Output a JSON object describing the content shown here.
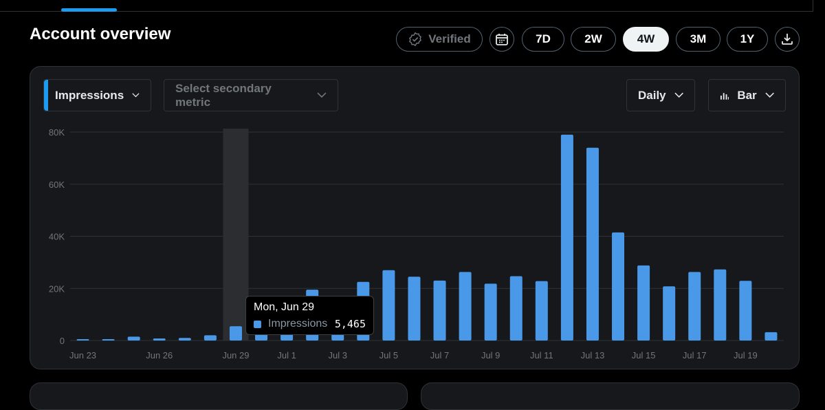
{
  "header": {
    "title": "Account overview",
    "verified_label": "Verified",
    "ranges": [
      "7D",
      "2W",
      "4W",
      "3M",
      "1Y"
    ],
    "active_range": "4W"
  },
  "controls": {
    "primary_metric": "Impressions",
    "secondary_metric_placeholder": "Select secondary metric",
    "granularity": "Daily",
    "chart_type": "Bar"
  },
  "tooltip": {
    "date": "Mon, Jun 29",
    "metric": "Impressions",
    "value": "5,465"
  },
  "colors": {
    "bar": "#4a99e9",
    "accent": "#1d9bf0",
    "highlight": "#2b2d30"
  },
  "chart_data": {
    "type": "bar",
    "xlabel": "",
    "ylabel": "",
    "ylim": [
      0,
      80000
    ],
    "yticks": [
      0,
      20000,
      40000,
      60000,
      80000
    ],
    "ytick_labels": [
      "0",
      "20K",
      "40K",
      "60K",
      "80K"
    ],
    "highlight_category": "Jun 29",
    "categories": [
      "Jun 23",
      "Jun 24",
      "Jun 25",
      "Jun 26",
      "Jun 27",
      "Jun 28",
      "Jun 29",
      "Jun 30",
      "Jul 1",
      "Jul 2",
      "Jul 3",
      "Jul 4",
      "Jul 5",
      "Jul 6",
      "Jul 7",
      "Jul 8",
      "Jul 9",
      "Jul 10",
      "Jul 11",
      "Jul 12",
      "Jul 13",
      "Jul 14",
      "Jul 15",
      "Jul 16",
      "Jul 17",
      "Jul 18",
      "Jul 19",
      "Jul 20"
    ],
    "xtick_labels": [
      "Jun 23",
      "Jun 26",
      "Jun 29",
      "Jul 1",
      "Jul 3",
      "Jul 5",
      "Jul 7",
      "Jul 9",
      "Jul 11",
      "Jul 13",
      "Jul 15",
      "Jul 17",
      "Jul 19"
    ],
    "series": [
      {
        "name": "Impressions",
        "values": [
          300,
          300,
          1500,
          800,
          1000,
          2000,
          5465,
          5000,
          8000,
          19500,
          5000,
          22500,
          27000,
          24500,
          23000,
          26300,
          21800,
          24700,
          22800,
          79000,
          74000,
          41500,
          28800,
          20800,
          26300,
          27300,
          22900,
          3200
        ]
      }
    ]
  }
}
